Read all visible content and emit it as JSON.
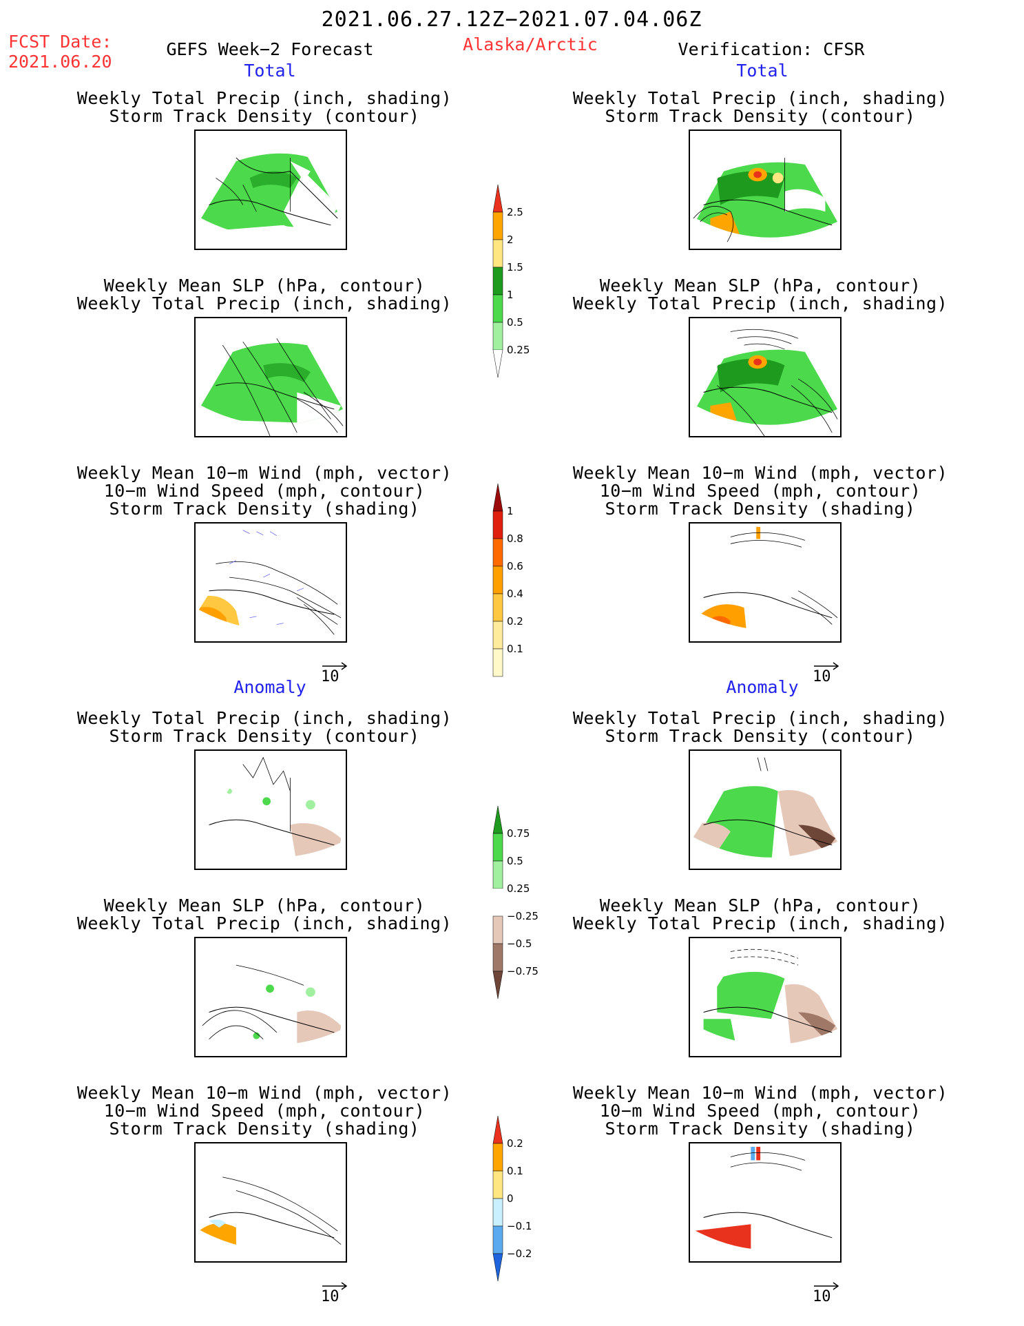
{
  "header": {
    "period": "2021.06.27.12Z−2021.07.04.06Z",
    "fcst_label": "FCST Date:",
    "fcst_date": "2021.06.20",
    "left_model": "GEFS Week−2 Forecast",
    "region": "Alaska/Arctic",
    "right_model": "Verification: CFSR"
  },
  "sections": {
    "total": "Total",
    "anomaly": "Anomaly"
  },
  "panel_titles": {
    "precip_track": [
      "Weekly Total Precip (inch, shading)",
      "Storm Track Density (contour)"
    ],
    "slp_precip": [
      "Weekly Mean SLP (hPa, contour)",
      "Weekly Total Precip (inch, shading)"
    ],
    "wind_track": [
      "Weekly Mean 10−m Wind (mph, vector)",
      "10−m Wind Speed (mph, contour)",
      "Storm Track Density (shading)"
    ]
  },
  "vector_ref": "10",
  "colorbars": {
    "precip_total": {
      "labels": [
        "2.5",
        "2",
        "1.5",
        "1",
        "0.5",
        "0.25"
      ],
      "colors": [
        "#e8321e",
        "#ffa500",
        "#ffe680",
        "#1e9b1e",
        "#4cd94c",
        "#a0f0a0"
      ]
    },
    "track_total": {
      "labels": [
        "1",
        "0.8",
        "0.6",
        "0.4",
        "0.2",
        "0.1"
      ],
      "colors": [
        "#9b0a0a",
        "#e0200e",
        "#ff6a00",
        "#ffa000",
        "#ffc840",
        "#ffeb9b",
        "#fff8c8"
      ]
    },
    "precip_anom": {
      "labels": [
        "0.75",
        "0.5",
        "0.25",
        "−0.25",
        "−0.5",
        "−0.75"
      ],
      "colors": [
        "#1e9b1e",
        "#4cd94c",
        "#a0f0a0",
        "#ffffff",
        "#e6c8b8",
        "#a07868",
        "#6e4638"
      ]
    },
    "track_anom": {
      "labels": [
        "0.2",
        "0.1",
        "0",
        "−0.1",
        "−0.2"
      ],
      "colors": [
        "#e8321e",
        "#ffa500",
        "#ffe680",
        "#c8f0ff",
        "#5aaaf0",
        "#1e64dc"
      ]
    }
  }
}
